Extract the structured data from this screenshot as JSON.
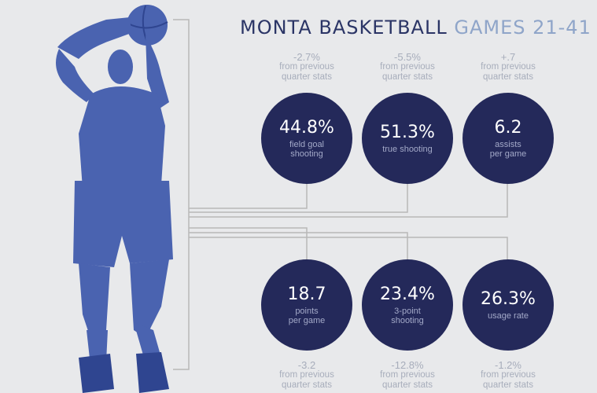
{
  "title": {
    "part_a": "MONTA BASKETBALL",
    "part_b": "GAMES 21-41"
  },
  "stats": [
    {
      "value": "44.8%",
      "label_lines": [
        "field goal",
        "shooting"
      ],
      "delta": "-2.7%",
      "delta_lines": [
        "from previous",
        "quarter stats"
      ]
    },
    {
      "value": "51.3%",
      "label_lines": [
        "true shooting"
      ],
      "delta": "-5.5%",
      "delta_lines": [
        "from previous",
        "quarter stats"
      ]
    },
    {
      "value": "6.2",
      "label_lines": [
        "assists",
        "per game"
      ],
      "delta": "+.7",
      "delta_lines": [
        "from previous",
        "quarter stats"
      ]
    },
    {
      "value": "18.7",
      "label_lines": [
        "points",
        "per game"
      ],
      "delta": "-3.2",
      "delta_lines": [
        "from previous",
        "quarter stats"
      ]
    },
    {
      "value": "23.4%",
      "label_lines": [
        "3-point",
        "shooting"
      ],
      "delta": "-12.8%",
      "delta_lines": [
        "from previous",
        "quarter stats"
      ]
    },
    {
      "value": "26.3%",
      "label_lines": [
        "usage rate"
      ],
      "delta": "-1.2%",
      "delta_lines": [
        "from previous",
        "quarter stats"
      ]
    }
  ],
  "colors": {
    "background": "#e8e9eb",
    "circle": "#24295a",
    "title_primary": "#2b3566",
    "title_accent": "#8fa5c9",
    "muted_text": "#a7adbb",
    "player": "#4a63b0",
    "player_dark": "#2f4590",
    "line": "#b8b8b8"
  }
}
